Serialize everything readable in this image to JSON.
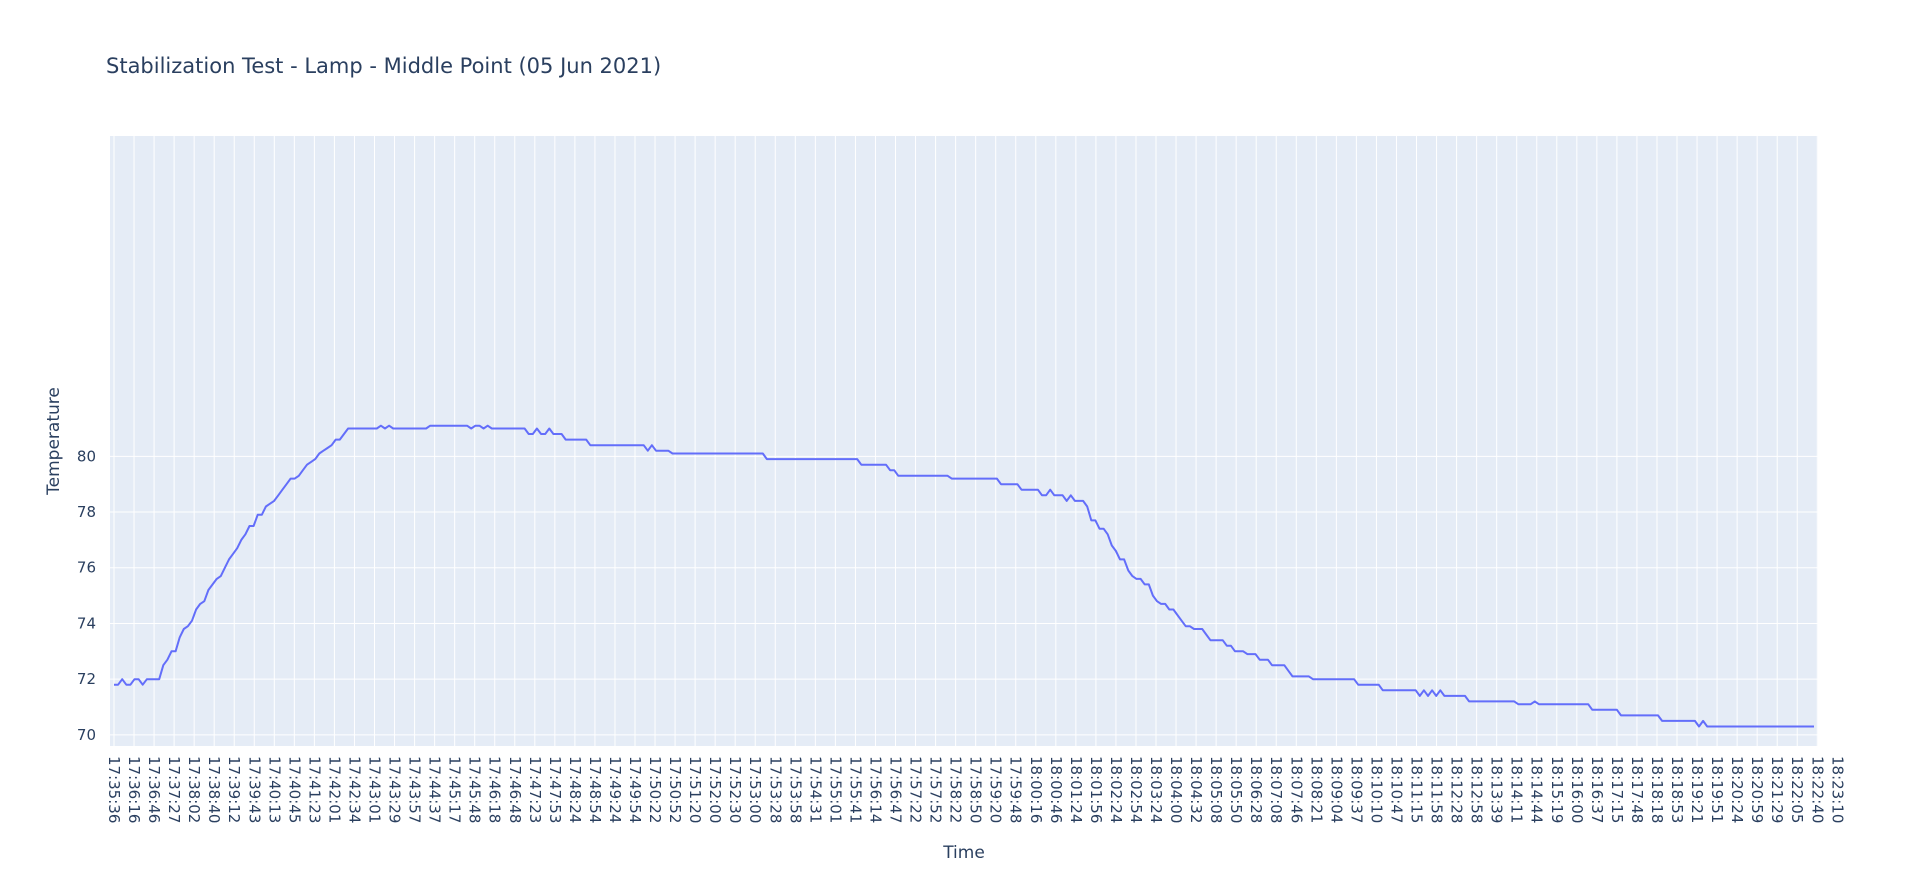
{
  "chart_data": {
    "type": "line",
    "title": "Stabilization Test - Lamp - Middle Point (05 Jun 2021)",
    "xlabel": "Time",
    "ylabel": "Temperature",
    "ylim": [
      69.6,
      91.5
    ],
    "y_ticks": [
      70,
      72,
      74,
      76,
      78,
      80
    ],
    "x_ticks": [
      "17:35:36",
      "17:36:16",
      "17:36:46",
      "17:37:27",
      "17:38:02",
      "17:38:40",
      "17:39:12",
      "17:39:43",
      "17:40:13",
      "17:40:45",
      "17:41:23",
      "17:42:01",
      "17:42:34",
      "17:43:01",
      "17:43:29",
      "17:43:57",
      "17:44:37",
      "17:45:17",
      "17:45:48",
      "17:46:18",
      "17:46:48",
      "17:47:23",
      "17:47:53",
      "17:48:24",
      "17:48:54",
      "17:49:24",
      "17:49:54",
      "17:50:22",
      "17:50:52",
      "17:51:20",
      "17:52:00",
      "17:52:30",
      "17:53:00",
      "17:53:28",
      "17:53:58",
      "17:54:31",
      "17:55:01",
      "17:55:41",
      "17:56:14",
      "17:56:47",
      "17:57:22",
      "17:57:52",
      "17:58:22",
      "17:58:50",
      "17:59:20",
      "17:59:48",
      "18:00:16",
      "18:00:46",
      "18:01:24",
      "18:01:56",
      "18:02:24",
      "18:02:54",
      "18:03:24",
      "18:04:00",
      "18:04:32",
      "18:05:08",
      "18:05:50",
      "18:06:28",
      "18:07:08",
      "18:07:46",
      "18:08:21",
      "18:09:04",
      "18:09:37",
      "18:10:10",
      "18:10:47",
      "18:11:15",
      "18:11:58",
      "18:12:28",
      "18:12:58",
      "18:13:39",
      "18:14:11",
      "18:14:44",
      "18:15:19",
      "18:16:00",
      "18:16:37",
      "18:17:15",
      "18:17:48",
      "18:18:18",
      "18:18:53",
      "18:19:21",
      "18:19:51",
      "18:20:24",
      "18:20:59",
      "18:21:29",
      "18:22:05",
      "18:22:40",
      "18:23:10"
    ],
    "grid": true,
    "background": "#E5ECF6",
    "series": [
      {
        "color": "#636EFA",
        "values": [
          71.8,
          71.8,
          72.0,
          71.8,
          71.8,
          72.0,
          72.0,
          71.8,
          72.0,
          72.0,
          72.0,
          72.0,
          72.5,
          72.7,
          73.0,
          73.0,
          73.5,
          73.8,
          73.9,
          74.1,
          74.5,
          74.7,
          74.8,
          75.2,
          75.4,
          75.6,
          75.7,
          76.0,
          76.3,
          76.5,
          76.7,
          77.0,
          77.2,
          77.5,
          77.5,
          77.9,
          77.9,
          78.2,
          78.3,
          78.4,
          78.6,
          78.8,
          79.0,
          79.2,
          79.2,
          79.3,
          79.5,
          79.7,
          79.8,
          79.9,
          80.1,
          80.2,
          80.3,
          80.4,
          80.6,
          80.6,
          80.8,
          81.0,
          81.0,
          81.0,
          81.0,
          81.0,
          81.0,
          81.0,
          81.0,
          81.1,
          81.0,
          81.1,
          81.0,
          81.0,
          81.0,
          81.0,
          81.0,
          81.0,
          81.0,
          81.0,
          81.0,
          81.1,
          81.1,
          81.1,
          81.1,
          81.1,
          81.1,
          81.1,
          81.1,
          81.1,
          81.1,
          81.0,
          81.1,
          81.1,
          81.0,
          81.1,
          81.0,
          81.0,
          81.0,
          81.0,
          81.0,
          81.0,
          81.0,
          81.0,
          81.0,
          80.8,
          80.8,
          81.0,
          80.8,
          80.8,
          81.0,
          80.8,
          80.8,
          80.8,
          80.6,
          80.6,
          80.6,
          80.6,
          80.6,
          80.6,
          80.4,
          80.4,
          80.4,
          80.4,
          80.4,
          80.4,
          80.4,
          80.4,
          80.4,
          80.4,
          80.4,
          80.4,
          80.4,
          80.4,
          80.2,
          80.4,
          80.2,
          80.2,
          80.2,
          80.2,
          80.1,
          80.1,
          80.1,
          80.1,
          80.1,
          80.1,
          80.1,
          80.1,
          80.1,
          80.1,
          80.1,
          80.1,
          80.1,
          80.1,
          80.1,
          80.1,
          80.1,
          80.1,
          80.1,
          80.1,
          80.1,
          80.1,
          80.1,
          79.9,
          79.9,
          79.9,
          79.9,
          79.9,
          79.9,
          79.9,
          79.9,
          79.9,
          79.9,
          79.9,
          79.9,
          79.9,
          79.9,
          79.9,
          79.9,
          79.9,
          79.9,
          79.9,
          79.9,
          79.9,
          79.9,
          79.9,
          79.7,
          79.7,
          79.7,
          79.7,
          79.7,
          79.7,
          79.7,
          79.5,
          79.5,
          79.3,
          79.3,
          79.3,
          79.3,
          79.3,
          79.3,
          79.3,
          79.3,
          79.3,
          79.3,
          79.3,
          79.3,
          79.3,
          79.2,
          79.2,
          79.2,
          79.2,
          79.2,
          79.2,
          79.2,
          79.2,
          79.2,
          79.2,
          79.2,
          79.2,
          79.0,
          79.0,
          79.0,
          79.0,
          79.0,
          78.8,
          78.8,
          78.8,
          78.8,
          78.8,
          78.6,
          78.6,
          78.8,
          78.6,
          78.6,
          78.6,
          78.4,
          78.6,
          78.4,
          78.4,
          78.4,
          78.2,
          77.7,
          77.7,
          77.4,
          77.4,
          77.2,
          76.8,
          76.6,
          76.3,
          76.3,
          75.9,
          75.7,
          75.6,
          75.6,
          75.4,
          75.4,
          75.0,
          74.8,
          74.7,
          74.7,
          74.5,
          74.5,
          74.3,
          74.1,
          73.9,
          73.9,
          73.8,
          73.8,
          73.8,
          73.6,
          73.4,
          73.4,
          73.4,
          73.4,
          73.2,
          73.2,
          73.0,
          73.0,
          73.0,
          72.9,
          72.9,
          72.9,
          72.7,
          72.7,
          72.7,
          72.5,
          72.5,
          72.5,
          72.5,
          72.3,
          72.1,
          72.1,
          72.1,
          72.1,
          72.1,
          72.0,
          72.0,
          72.0,
          72.0,
          72.0,
          72.0,
          72.0,
          72.0,
          72.0,
          72.0,
          72.0,
          71.8,
          71.8,
          71.8,
          71.8,
          71.8,
          71.8,
          71.6,
          71.6,
          71.6,
          71.6,
          71.6,
          71.6,
          71.6,
          71.6,
          71.6,
          71.4,
          71.6,
          71.4,
          71.6,
          71.4,
          71.6,
          71.4,
          71.4,
          71.4,
          71.4,
          71.4,
          71.4,
          71.2,
          71.2,
          71.2,
          71.2,
          71.2,
          71.2,
          71.2,
          71.2,
          71.2,
          71.2,
          71.2,
          71.2,
          71.1,
          71.1,
          71.1,
          71.1,
          71.2,
          71.1,
          71.1,
          71.1,
          71.1,
          71.1,
          71.1,
          71.1,
          71.1,
          71.1,
          71.1,
          71.1,
          71.1,
          71.1,
          70.9,
          70.9,
          70.9,
          70.9,
          70.9,
          70.9,
          70.9,
          70.7,
          70.7,
          70.7,
          70.7,
          70.7,
          70.7,
          70.7,
          70.7,
          70.7,
          70.7,
          70.5,
          70.5,
          70.5,
          70.5,
          70.5,
          70.5,
          70.5,
          70.5,
          70.5,
          70.3,
          70.5,
          70.3,
          70.3,
          70.3,
          70.3,
          70.3,
          70.3,
          70.3,
          70.3,
          70.3,
          70.3,
          70.3,
          70.3,
          70.3,
          70.3,
          70.3,
          70.3,
          70.3,
          70.3,
          70.3,
          70.3,
          70.3,
          70.3,
          70.3,
          70.3,
          70.3,
          70.3,
          70.3
        ]
      }
    ]
  }
}
